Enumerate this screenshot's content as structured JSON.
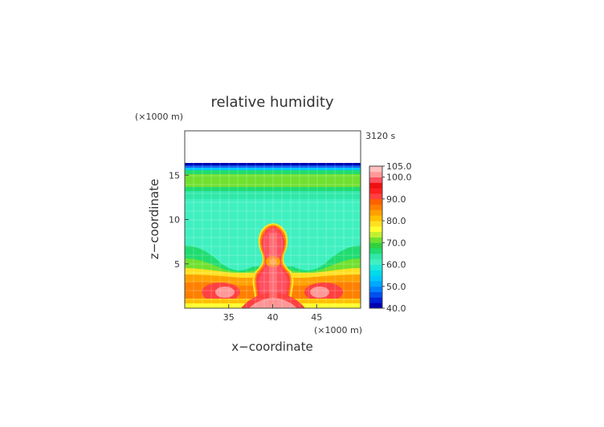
{
  "chart_data": {
    "type": "heatmap",
    "title": "relative humidity",
    "time_label": "3120 s",
    "xlabel": "x−coordinate",
    "ylabel": "z−coordinate",
    "x_unit": "(×1000 m)",
    "z_unit": "(×1000 m)",
    "xlim": [
      30,
      50
    ],
    "zlim": [
      0,
      20
    ],
    "x_ticks": [
      "35",
      "40",
      "45"
    ],
    "z_ticks": [
      "5",
      "10",
      "15"
    ],
    "colorbar": {
      "levels": [
        40,
        42.5,
        45,
        47.5,
        50,
        52.5,
        55,
        57.5,
        60,
        62.5,
        65,
        67.5,
        70,
        72.5,
        75,
        77.5,
        80,
        82.5,
        85,
        87.5,
        90,
        92.5,
        95,
        97.5,
        100,
        102.5,
        105
      ],
      "colors": [
        "#0000b0",
        "#0022d8",
        "#0050f0",
        "#0080ff",
        "#00a8ff",
        "#00c8f8",
        "#00dcea",
        "#20e8d8",
        "#40f0c0",
        "#30e8a8",
        "#20dc70",
        "#30d040",
        "#70e030",
        "#c0f030",
        "#ffff30",
        "#ffe020",
        "#ffc000",
        "#ffa000",
        "#ff8000",
        "#ff6000",
        "#ff4040",
        "#ff2020",
        "#ee1010",
        "#ff5060",
        "#ff9898",
        "#ffc0c0"
      ],
      "tick_labels": [
        "105.0",
        "100.0",
        "90.0",
        "80.0",
        "70.0",
        "60.0",
        "50.0",
        "40.0"
      ]
    }
  }
}
